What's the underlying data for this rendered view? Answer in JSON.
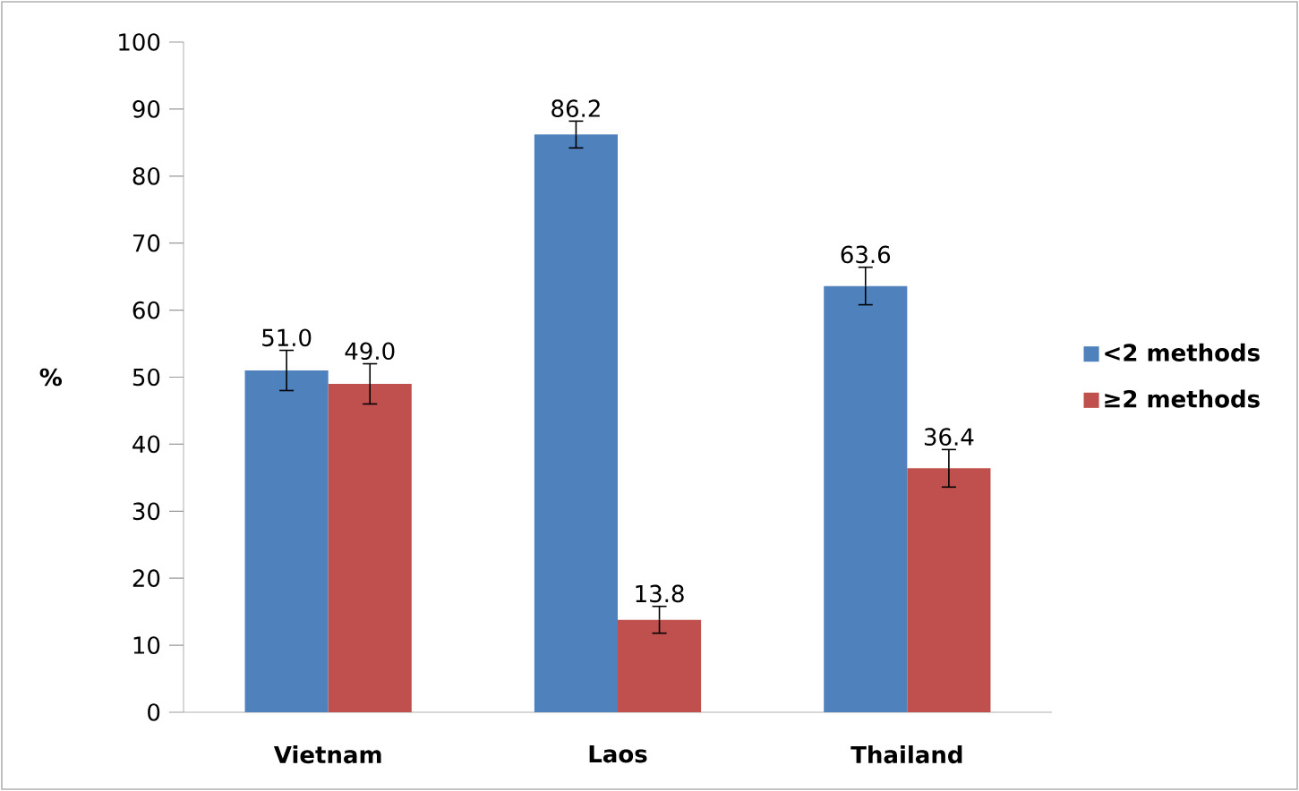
{
  "chart_data": {
    "type": "bar",
    "categories": [
      "Vietnam",
      "Laos",
      "Thailand"
    ],
    "ylabel": "%",
    "ylim": [
      0,
      100
    ],
    "yticks": [
      0,
      10,
      20,
      30,
      40,
      50,
      60,
      70,
      80,
      90,
      100
    ],
    "legend": "right",
    "series": [
      {
        "name": "<2 methods",
        "color": "#4f81bd",
        "values": [
          51.0,
          86.2,
          63.6
        ],
        "errors": [
          3.0,
          2.0,
          2.8
        ],
        "value_labels": [
          "51.0",
          "86.2",
          "63.6"
        ]
      },
      {
        "name": "≥2 methods",
        "color": "#c0504d",
        "values": [
          49.0,
          13.8,
          36.4
        ],
        "errors": [
          3.0,
          2.0,
          2.8
        ],
        "value_labels": [
          "49.0",
          "13.8",
          "36.4"
        ]
      }
    ]
  }
}
